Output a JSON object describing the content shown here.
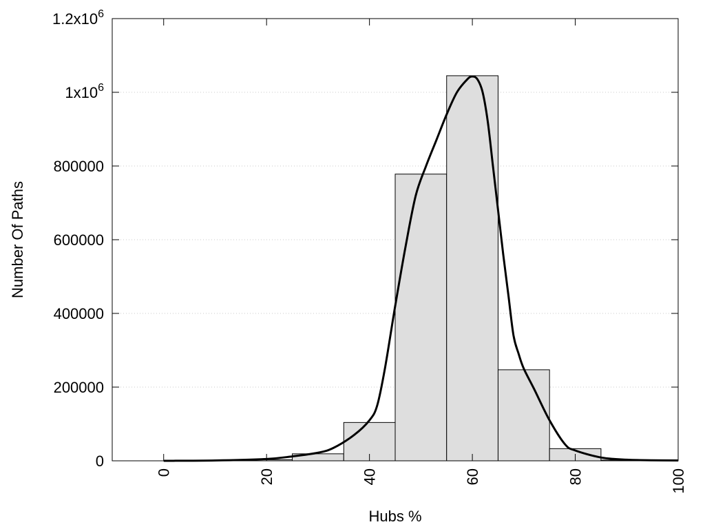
{
  "chart_data": {
    "type": "bar",
    "xlabel": "Hubs %",
    "ylabel": "Number Of Paths",
    "xlim": [
      -10,
      100
    ],
    "ylim": [
      0,
      1200000
    ],
    "grid": true,
    "x_ticks": [
      {
        "value": 0,
        "label": "0"
      },
      {
        "value": 20,
        "label": "20"
      },
      {
        "value": 40,
        "label": "40"
      },
      {
        "value": 60,
        "label": "60"
      },
      {
        "value": 80,
        "label": "80"
      },
      {
        "value": 100,
        "label": "100"
      }
    ],
    "y_ticks": [
      {
        "value": 0,
        "label": "0"
      },
      {
        "value": 200000,
        "label": "200000"
      },
      {
        "value": 400000,
        "label": "400000"
      },
      {
        "value": 600000,
        "label": "600000"
      },
      {
        "value": 800000,
        "label": "800000"
      },
      {
        "value": 1000000,
        "label": "1x10",
        "sup": "6"
      },
      {
        "value": 1200000,
        "label": "1.2x10",
        "sup": "6"
      }
    ],
    "bins": [
      {
        "x": 0,
        "value": 0
      },
      {
        "x": 10,
        "value": 0
      },
      {
        "x": 20,
        "value": 3000
      },
      {
        "x": 30,
        "value": 19000
      },
      {
        "x": 40,
        "value": 104000
      },
      {
        "x": 50,
        "value": 778000
      },
      {
        "x": 60,
        "value": 1045000
      },
      {
        "x": 70,
        "value": 247000
      },
      {
        "x": 80,
        "value": 33000
      },
      {
        "x": 90,
        "value": 2000
      }
    ],
    "bin_width": 10,
    "density_curve": [
      {
        "x": 0,
        "y": 0
      },
      {
        "x": 10,
        "y": 1000
      },
      {
        "x": 20,
        "y": 5000
      },
      {
        "x": 25,
        "y": 12000
      },
      {
        "x": 30,
        "y": 22000
      },
      {
        "x": 33,
        "y": 35000
      },
      {
        "x": 37,
        "y": 70000
      },
      {
        "x": 40,
        "y": 110000
      },
      {
        "x": 41.5,
        "y": 150000
      },
      {
        "x": 43,
        "y": 250000
      },
      {
        "x": 45,
        "y": 420000
      },
      {
        "x": 47,
        "y": 580000
      },
      {
        "x": 49,
        "y": 720000
      },
      {
        "x": 51,
        "y": 800000
      },
      {
        "x": 53,
        "y": 870000
      },
      {
        "x": 55,
        "y": 940000
      },
      {
        "x": 57,
        "y": 1000000
      },
      {
        "x": 59,
        "y": 1035000
      },
      {
        "x": 60,
        "y": 1043000
      },
      {
        "x": 61,
        "y": 1035000
      },
      {
        "x": 62,
        "y": 1000000
      },
      {
        "x": 63,
        "y": 920000
      },
      {
        "x": 64,
        "y": 800000
      },
      {
        "x": 65,
        "y": 680000
      },
      {
        "x": 66,
        "y": 560000
      },
      {
        "x": 67,
        "y": 450000
      },
      {
        "x": 68,
        "y": 340000
      },
      {
        "x": 69,
        "y": 290000
      },
      {
        "x": 70,
        "y": 250000
      },
      {
        "x": 72,
        "y": 195000
      },
      {
        "x": 75,
        "y": 110000
      },
      {
        "x": 78,
        "y": 45000
      },
      {
        "x": 80,
        "y": 28000
      },
      {
        "x": 85,
        "y": 9000
      },
      {
        "x": 90,
        "y": 3000
      },
      {
        "x": 95,
        "y": 1500
      },
      {
        "x": 100,
        "y": 1000
      }
    ]
  }
}
